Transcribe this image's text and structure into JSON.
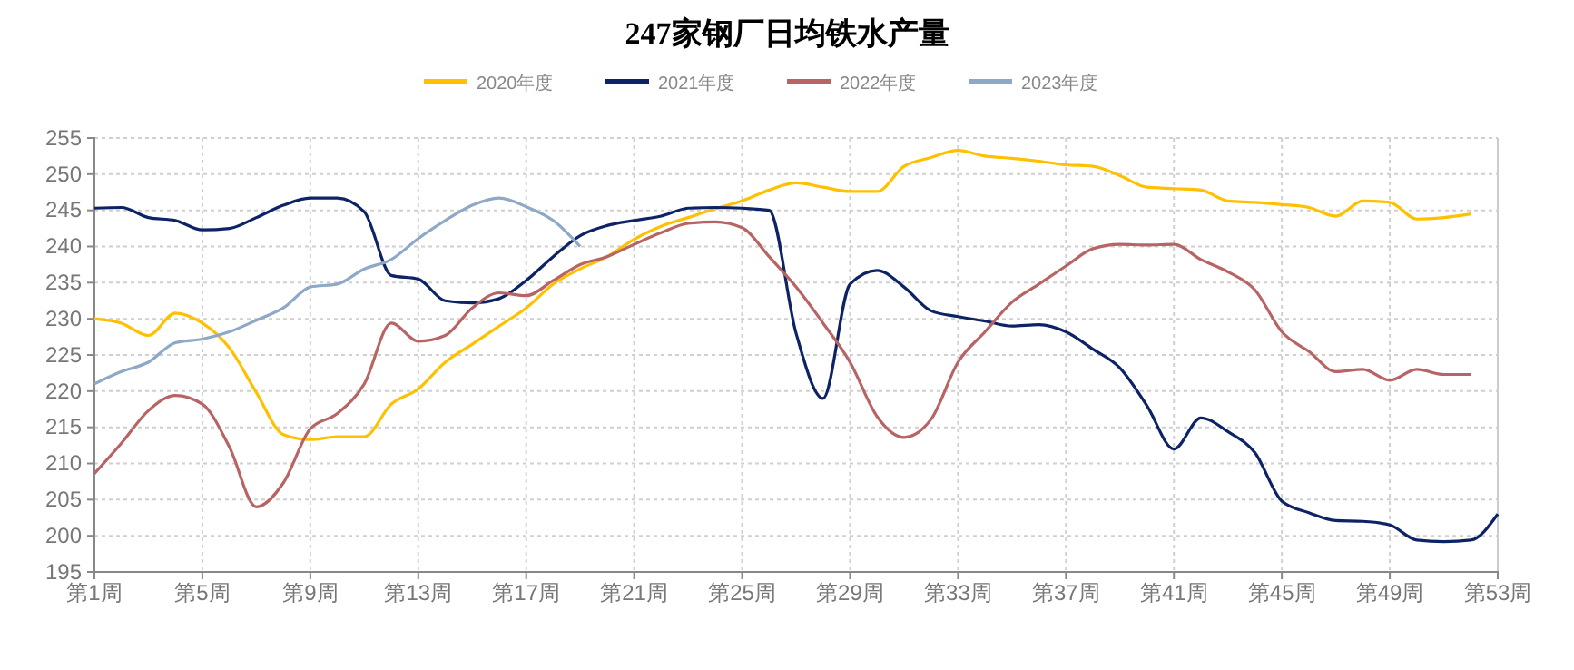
{
  "chart_data": {
    "type": "line",
    "title": "247家钢厂日均铁水产量",
    "legend": "top",
    "grid": true,
    "marker": "none",
    "line_style": "solid",
    "categories": [
      "第1周",
      null,
      null,
      null,
      "第5周",
      null,
      null,
      null,
      "第9周",
      null,
      null,
      null,
      "第13周",
      null,
      null,
      null,
      "第17周",
      null,
      null,
      null,
      "第21周",
      null,
      null,
      null,
      "第25周",
      null,
      null,
      null,
      "第29周",
      null,
      null,
      null,
      "第33周",
      null,
      null,
      null,
      "第37周",
      null,
      null,
      null,
      "第41周",
      null,
      null,
      null,
      "第45周",
      null,
      null,
      null,
      "第49周",
      null,
      null,
      null,
      "第53周"
    ],
    "ylim": [
      195,
      255
    ],
    "yticks": [
      195,
      200,
      205,
      210,
      215,
      220,
      225,
      230,
      235,
      240,
      245,
      250,
      255
    ],
    "series": [
      {
        "name": "2020年度",
        "color": "#ffc000",
        "values": [
          230,
          229.4,
          227.7,
          230.8,
          229.4,
          226,
          219.8,
          214,
          213.3,
          213.7,
          213.7,
          218.2,
          220.3,
          224,
          226.5,
          229,
          231.5,
          234.8,
          236.9,
          238.6,
          241,
          242.8,
          244,
          245.2,
          246.3,
          247.8,
          248.8,
          248.2,
          247.6,
          247.6,
          251.1,
          252.3,
          253.3,
          252.5,
          252.2,
          251.8,
          251.3,
          251.1,
          249.8,
          248.2,
          248,
          247.8,
          246.3,
          246.1,
          245.8,
          245.4,
          244.2,
          246.3,
          246.1,
          243.8,
          244,
          244.5,
          null
        ]
      },
      {
        "name": "2021年度",
        "color": "#0d2366",
        "values": [
          245.3,
          245.4,
          244,
          243.6,
          242.3,
          242.5,
          244,
          245.7,
          246.7,
          246.7,
          244.8,
          236,
          235.5,
          232.5,
          232.2,
          232.8,
          235.3,
          238.6,
          241.5,
          242.9,
          243.6,
          244.2,
          245.3,
          245.4,
          245.3,
          245,
          228,
          219,
          234.8,
          236.7,
          234.4,
          231.1,
          230.3,
          229.7,
          229,
          229.2,
          228.2,
          225.8,
          223.2,
          218,
          212,
          216.3,
          214.4,
          211.5,
          204.8,
          203.2,
          202.1,
          202,
          201.5,
          199.4,
          199.2,
          199.4,
          203
        ]
      },
      {
        "name": "2022年度",
        "color": "#b96464",
        "values": [
          208.6,
          212.8,
          217.3,
          219.4,
          218.2,
          212.3,
          204,
          207.3,
          214.8,
          216.9,
          221,
          229.4,
          226.9,
          227.7,
          231.5,
          233.6,
          233.2,
          235.3,
          237.5,
          238.6,
          240.3,
          241.9,
          243.2,
          243.4,
          242.6,
          238.6,
          234.4,
          229.4,
          224,
          216.5,
          213.6,
          216.1,
          224,
          228.2,
          232.3,
          234.8,
          237.3,
          239.7,
          240.3,
          240.2,
          240.3,
          238.2,
          236.5,
          234,
          228.2,
          225.5,
          222.7,
          223,
          221.5,
          223,
          222.3,
          222.3,
          null
        ]
      },
      {
        "name": "2023年度",
        "color": "#8ea9c8",
        "values": [
          221,
          222.7,
          224,
          226.7,
          227.2,
          228.2,
          229.8,
          231.5,
          234.4,
          234.8,
          236.9,
          238.2,
          241.1,
          243.6,
          245.7,
          246.7,
          245.5,
          243.6,
          240,
          null,
          null,
          null,
          null,
          null,
          null,
          null,
          null,
          null,
          null,
          null,
          null,
          null,
          null,
          null,
          null,
          null,
          null,
          null,
          null,
          null,
          null,
          null,
          null,
          null,
          null,
          null,
          null,
          null,
          null,
          null,
          null,
          null,
          null
        ]
      }
    ]
  }
}
